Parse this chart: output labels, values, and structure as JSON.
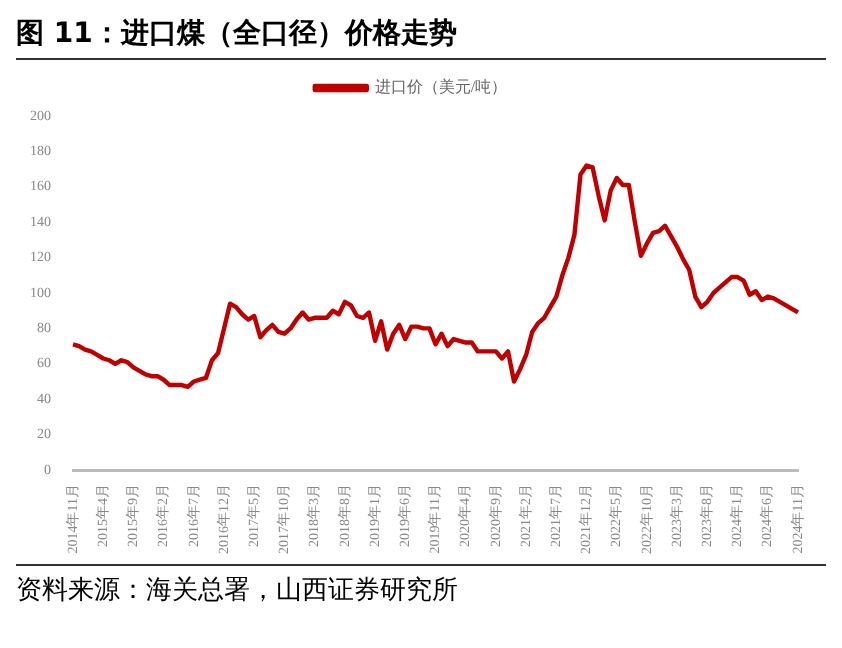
{
  "chart_data": {
    "type": "line",
    "title": "图 11：进口煤（全口径）价格走势",
    "annotations": [
      "资料来源：海关总署，山西证券研究所"
    ],
    "categories": [
      "2014年11月",
      null,
      null,
      null,
      null,
      "2015年4月",
      null,
      null,
      null,
      null,
      "2015年9月",
      null,
      null,
      null,
      null,
      "2016年2月",
      null,
      null,
      null,
      null,
      "2016年7月",
      null,
      null,
      null,
      null,
      "2016年12月",
      null,
      null,
      null,
      null,
      "2017年5月",
      null,
      null,
      null,
      null,
      "2017年10月",
      null,
      null,
      null,
      null,
      "2018年3月",
      null,
      null,
      null,
      null,
      "2018年8月",
      null,
      null,
      null,
      null,
      "2019年1月",
      null,
      null,
      null,
      null,
      "2019年6月",
      null,
      null,
      null,
      null,
      "2019年11月",
      null,
      null,
      null,
      null,
      "2020年4月",
      null,
      null,
      null,
      null,
      "2020年9月",
      null,
      null,
      null,
      null,
      "2021年2月",
      null,
      null,
      null,
      null,
      "2021年7月",
      null,
      null,
      null,
      null,
      "2021年12月",
      null,
      null,
      null,
      null,
      "2022年5月",
      null,
      null,
      null,
      null,
      "2022年10月",
      null,
      null,
      null,
      null,
      "2023年3月",
      null,
      null,
      null,
      null,
      "2023年8月",
      null,
      null,
      null,
      null,
      "2024年1月",
      null,
      null,
      null,
      null,
      "2024年6月",
      null,
      null,
      null,
      null,
      "2024年11月"
    ],
    "series": [
      {
        "name": "进口价（美元/吨）",
        "color": "#c00000",
        "values": [
          71,
          70,
          68,
          67,
          65,
          63,
          62,
          60,
          62,
          61,
          58,
          56,
          54,
          53,
          53,
          51,
          48,
          48,
          48,
          47,
          50,
          51,
          52,
          62,
          66,
          80,
          94,
          92,
          88,
          85,
          87,
          75,
          79,
          82,
          78,
          77,
          80,
          85,
          89,
          85,
          86,
          86,
          86,
          90,
          88,
          95,
          93,
          87,
          86,
          89,
          73,
          84,
          68,
          77,
          82,
          74,
          81,
          81,
          80,
          80,
          71,
          77,
          70,
          74,
          73,
          72,
          72,
          67,
          67,
          67,
          67,
          63,
          67,
          50,
          57,
          65,
          78,
          83,
          86,
          92,
          98,
          110,
          120,
          133,
          167,
          172,
          171,
          155,
          141,
          158,
          165,
          161,
          161,
          140,
          121,
          128,
          134,
          135,
          138,
          132,
          126,
          119,
          113,
          98,
          92,
          95,
          100,
          103,
          106,
          109,
          109,
          107,
          99,
          101,
          96,
          98,
          97,
          95,
          93,
          91,
          89
        ]
      }
    ],
    "ylim": [
      0,
      200
    ],
    "yticks": [
      0,
      20,
      40,
      60,
      80,
      100,
      120,
      140,
      160,
      180,
      200
    ],
    "grid": false,
    "legend": "top",
    "marker": "none",
    "line_style": "solid"
  }
}
